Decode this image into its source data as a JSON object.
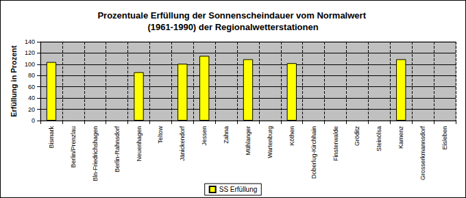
{
  "chart_data": {
    "type": "bar",
    "title": "Prozentuale Erfüllung der Sonnenscheindauer vom Normalwert (1961-1990) der Regionalwetterstationen",
    "y_label": "Erfüllung in Prozent",
    "categories": [
      "Bismark",
      "Berlin/Prenzlau",
      "Bln-Friedrichshagen",
      "Berlin-Rahnsdorf",
      "Neuenhagen",
      "Teltow",
      "Jänickendorf",
      "Jessen",
      "Zahna",
      "Mühlanger",
      "Wartenburg",
      "Köthen",
      "Doberlug-Kirchhain",
      "Finsterwalde",
      "Gröditz",
      "Steinölsa",
      "Kamenz",
      "Grosserkmannsdorf",
      "Eisleben"
    ],
    "series": [
      {
        "name": "SS Erfüllung",
        "color": "#ffff00",
        "values": [
          104,
          null,
          null,
          null,
          86,
          null,
          101,
          115,
          null,
          109,
          null,
          102,
          null,
          null,
          null,
          null,
          109,
          null,
          null
        ]
      }
    ],
    "ylim": [
      0,
      140
    ],
    "yticks": [
      0,
      20,
      40,
      60,
      80,
      100,
      120,
      140
    ],
    "grid": true,
    "legend": "bottom"
  }
}
